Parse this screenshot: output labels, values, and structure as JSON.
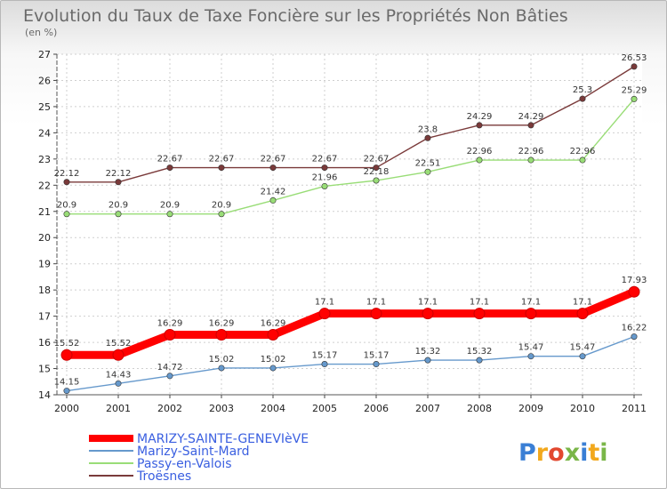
{
  "chart_data": {
    "type": "line",
    "title": "Evolution du Taux de Taxe Foncière sur les Propriétés Non Bâties",
    "subtitle": "(en %)",
    "x": [
      "2000",
      "2001",
      "2002",
      "2003",
      "2004",
      "2005",
      "2006",
      "2007",
      "2008",
      "2009",
      "2010",
      "2011"
    ],
    "ylim": [
      14,
      27
    ],
    "yticks": [
      14,
      15,
      16,
      17,
      18,
      19,
      20,
      21,
      22,
      23,
      24,
      25,
      26,
      27
    ],
    "grid": true,
    "legend_position": "bottom-left",
    "series": [
      {
        "name": "MARIZY-SAINTE-GENEVIèVE",
        "color": "#ff0000",
        "values": [
          15.52,
          15.52,
          16.29,
          16.29,
          16.29,
          17.1,
          17.1,
          17.1,
          17.1,
          17.1,
          17.1,
          17.93
        ],
        "labels": [
          "15.52",
          "15.52",
          "16.29",
          "16.29",
          "16.29",
          "17.1",
          "17.1",
          "17.1",
          "17.1",
          "17.1",
          "17.1",
          "17.93"
        ]
      },
      {
        "name": "Marizy-Saint-Mard",
        "color": "#6699cc",
        "values": [
          14.15,
          14.43,
          14.72,
          15.02,
          15.02,
          15.17,
          15.17,
          15.32,
          15.32,
          15.47,
          15.47,
          16.22
        ],
        "labels": [
          "14.15",
          "14.43",
          "14.72",
          "15.02",
          "15.02",
          "15.17",
          "15.17",
          "15.32",
          "15.32",
          "15.47",
          "15.47",
          "16.22"
        ]
      },
      {
        "name": "Passy-en-Valois",
        "color": "#99dd77",
        "values": [
          20.9,
          20.9,
          20.9,
          20.9,
          21.42,
          21.96,
          22.18,
          22.51,
          22.96,
          22.96,
          22.96,
          25.29
        ],
        "labels": [
          "20.9",
          "20.9",
          "20.9",
          "20.9",
          "21.42",
          "21.96",
          "22.18",
          "22.51",
          "22.96",
          "22.96",
          "22.96",
          "25.29"
        ]
      },
      {
        "name": "Troësnes",
        "color": "#7a3a3a",
        "values": [
          22.12,
          22.12,
          22.67,
          22.67,
          22.67,
          22.67,
          22.67,
          23.8,
          24.29,
          24.29,
          25.3,
          26.53
        ],
        "labels": [
          "22.12",
          "22.12",
          "22.67",
          "22.67",
          "22.67",
          "22.67",
          "22.67",
          "23.8",
          "24.29",
          "24.29",
          "25.3",
          "26.53"
        ]
      }
    ]
  },
  "logo": {
    "letters": [
      "P",
      "r",
      "o",
      "x",
      "i",
      "t",
      "i"
    ],
    "colors": [
      "#3a7fd5",
      "#f2a81d",
      "#e2482f",
      "#7ab648",
      "#3a7fd5",
      "#f2a81d",
      "#7ab648"
    ]
  }
}
